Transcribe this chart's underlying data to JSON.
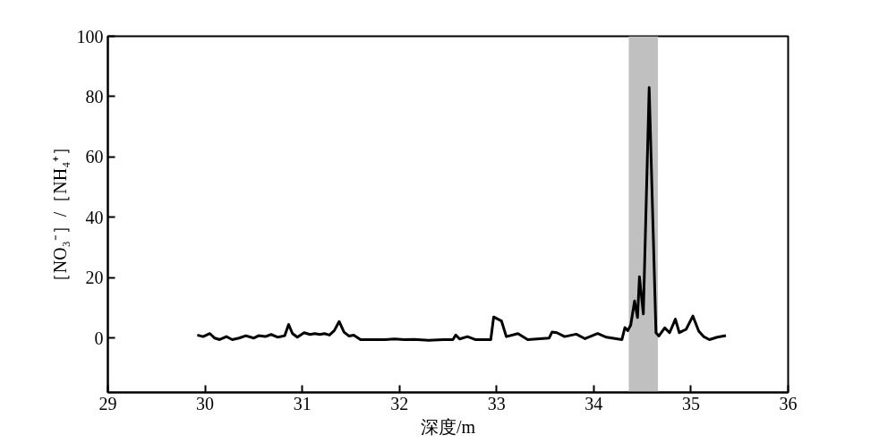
{
  "chart_data": {
    "type": "line",
    "xlabel": "深度/m",
    "ylabel": "［NO₃⁻］/［NH₄⁺］",
    "x": [
      29.92,
      29.98,
      30.05,
      30.1,
      30.15,
      30.22,
      30.28,
      30.35,
      30.42,
      30.5,
      30.55,
      30.62,
      30.68,
      30.75,
      30.82,
      30.86,
      30.9,
      30.95,
      31.02,
      31.08,
      31.13,
      31.18,
      31.23,
      31.28,
      31.33,
      31.38,
      31.43,
      31.48,
      31.53,
      31.6,
      31.7,
      31.85,
      31.95,
      32.05,
      32.15,
      32.3,
      32.45,
      32.55,
      32.58,
      32.62,
      32.7,
      32.78,
      32.85,
      32.94,
      32.97,
      33.05,
      33.1,
      33.22,
      33.32,
      33.54,
      33.57,
      33.62,
      33.7,
      33.82,
      33.91,
      34.04,
      34.13,
      34.29,
      34.32,
      34.35,
      34.38,
      34.42,
      34.45,
      34.47,
      34.51,
      34.57,
      34.64,
      34.67,
      34.73,
      34.78,
      34.84,
      34.88,
      34.95,
      35.02,
      35.08,
      35.13,
      35.19,
      35.27,
      35.36
    ],
    "series": [
      {
        "color": "#000000",
        "values": [
          1,
          0.5,
          1.5,
          0,
          -0.5,
          0.5,
          -0.5,
          0,
          0.8,
          0,
          0.8,
          0.5,
          1.2,
          0.3,
          0.8,
          4.5,
          1.5,
          0.3,
          1.8,
          1.2,
          1.5,
          1.2,
          1.5,
          1,
          2.5,
          5.5,
          2,
          0.7,
          1,
          -0.5,
          -0.5,
          -0.5,
          -0.3,
          -0.5,
          -0.4,
          -0.7,
          -0.5,
          -0.5,
          1,
          -0.3,
          0.5,
          -0.5,
          -0.5,
          -0.5,
          7,
          5.7,
          0.5,
          1.5,
          -0.5,
          0,
          2,
          1.8,
          0.5,
          1.3,
          -0.2,
          1.5,
          0.3,
          -0.5,
          3.5,
          2.5,
          4.3,
          12.3,
          6.8,
          20.3,
          8,
          83,
          1.8,
          0.7,
          3.4,
          1.8,
          6.3,
          1.8,
          2.9,
          7.3,
          2.3,
          0.5,
          -0.5,
          0.3,
          0.8
        ]
      }
    ],
    "xlim": [
      29,
      36
    ],
    "xticks": [
      29,
      30,
      31,
      32,
      33,
      34,
      35,
      36
    ],
    "ylim": [
      -18,
      100
    ],
    "yticks": [
      0,
      20,
      40,
      60,
      80,
      100
    ],
    "bands": [
      {
        "axis": "x",
        "from": 34.36,
        "to": 34.66,
        "color": "#c0c0c0"
      }
    ],
    "grid": false,
    "line_style": "solid"
  }
}
